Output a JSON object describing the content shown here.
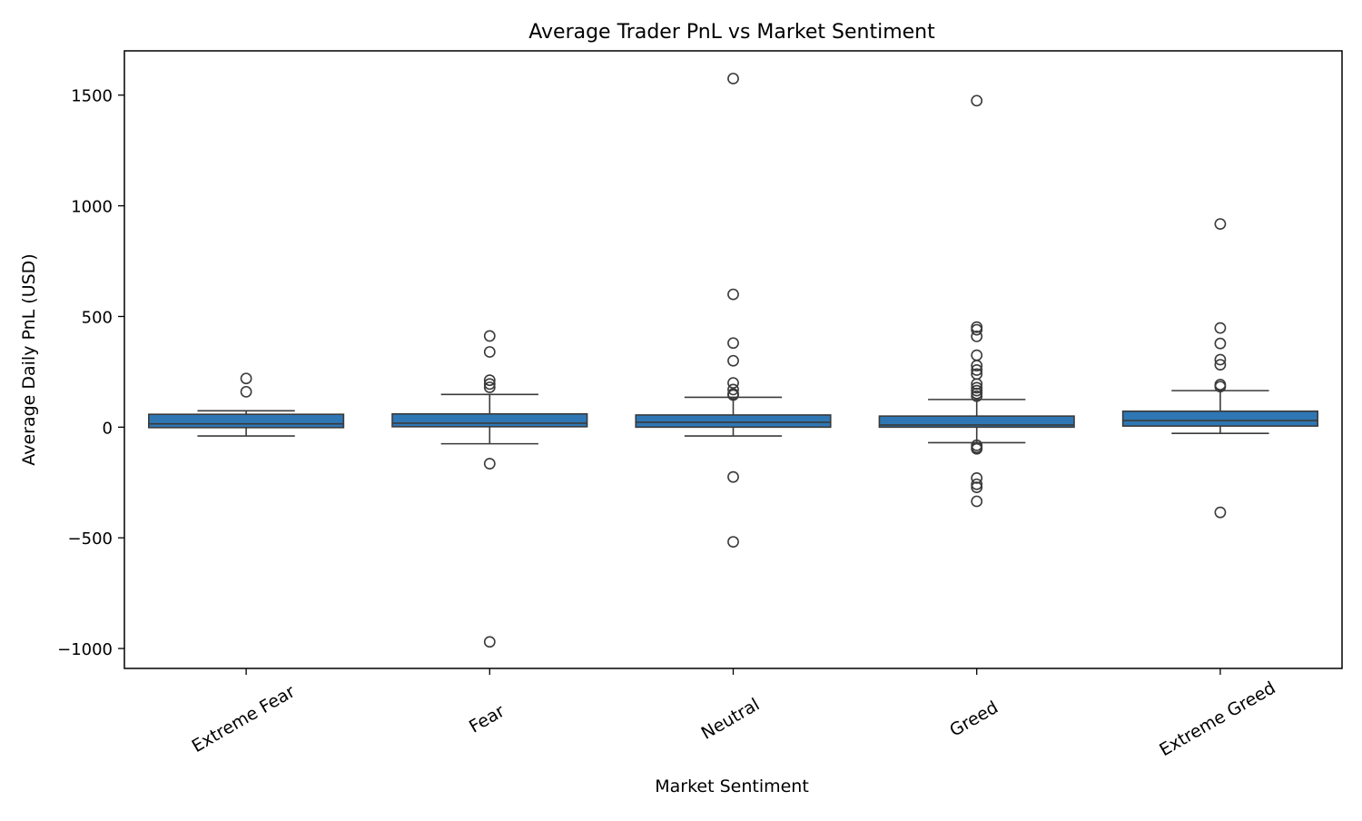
{
  "chart_data": {
    "type": "box",
    "title": "Average Trader PnL vs Market Sentiment",
    "xlabel": "Market Sentiment",
    "ylabel": "Average Daily PnL (USD)",
    "ylim": [
      -1090,
      1700
    ],
    "yticks": [
      {
        "value": -1000,
        "label": "−1000"
      },
      {
        "value": -500,
        "label": "−500"
      },
      {
        "value": 0,
        "label": "0"
      },
      {
        "value": 500,
        "label": "500"
      },
      {
        "value": 1000,
        "label": "1000"
      },
      {
        "value": 1500,
        "label": "1500"
      }
    ],
    "grid": false,
    "box_color": "#2f77b4",
    "edge_color": "#3a3a3a",
    "categories": [
      "Extreme Fear",
      "Fear",
      "Neutral",
      "Greed",
      "Extreme Greed"
    ],
    "boxes": [
      {
        "category": "Extreme Fear",
        "q1": -2,
        "median": 15,
        "q3": 58,
        "whisker_low": -40,
        "whisker_high": 74,
        "outliers": [
          220,
          160
        ]
      },
      {
        "category": "Fear",
        "q1": 2,
        "median": 18,
        "q3": 60,
        "whisker_low": -75,
        "whisker_high": 148,
        "outliers": [
          412,
          340,
          212,
          195,
          180,
          -165,
          -970
        ]
      },
      {
        "category": "Neutral",
        "q1": 0,
        "median": 22,
        "q3": 55,
        "whisker_low": -40,
        "whisker_high": 135,
        "outliers": [
          1575,
          600,
          380,
          300,
          200,
          170,
          150,
          145,
          -225,
          -518
        ]
      },
      {
        "category": "Greed",
        "q1": 0,
        "median": 10,
        "q3": 50,
        "whisker_low": -70,
        "whisker_high": 125,
        "outliers": [
          1475,
          452,
          440,
          410,
          325,
          278,
          258,
          240,
          195,
          178,
          165,
          152,
          140,
          -82,
          -92,
          -98,
          -230,
          -258,
          -272,
          -335
        ]
      },
      {
        "category": "Extreme Greed",
        "q1": 5,
        "median": 30,
        "q3": 72,
        "whisker_low": -28,
        "whisker_high": 165,
        "outliers": [
          918,
          448,
          378,
          305,
          282,
          192,
          183,
          -385
        ]
      }
    ]
  }
}
